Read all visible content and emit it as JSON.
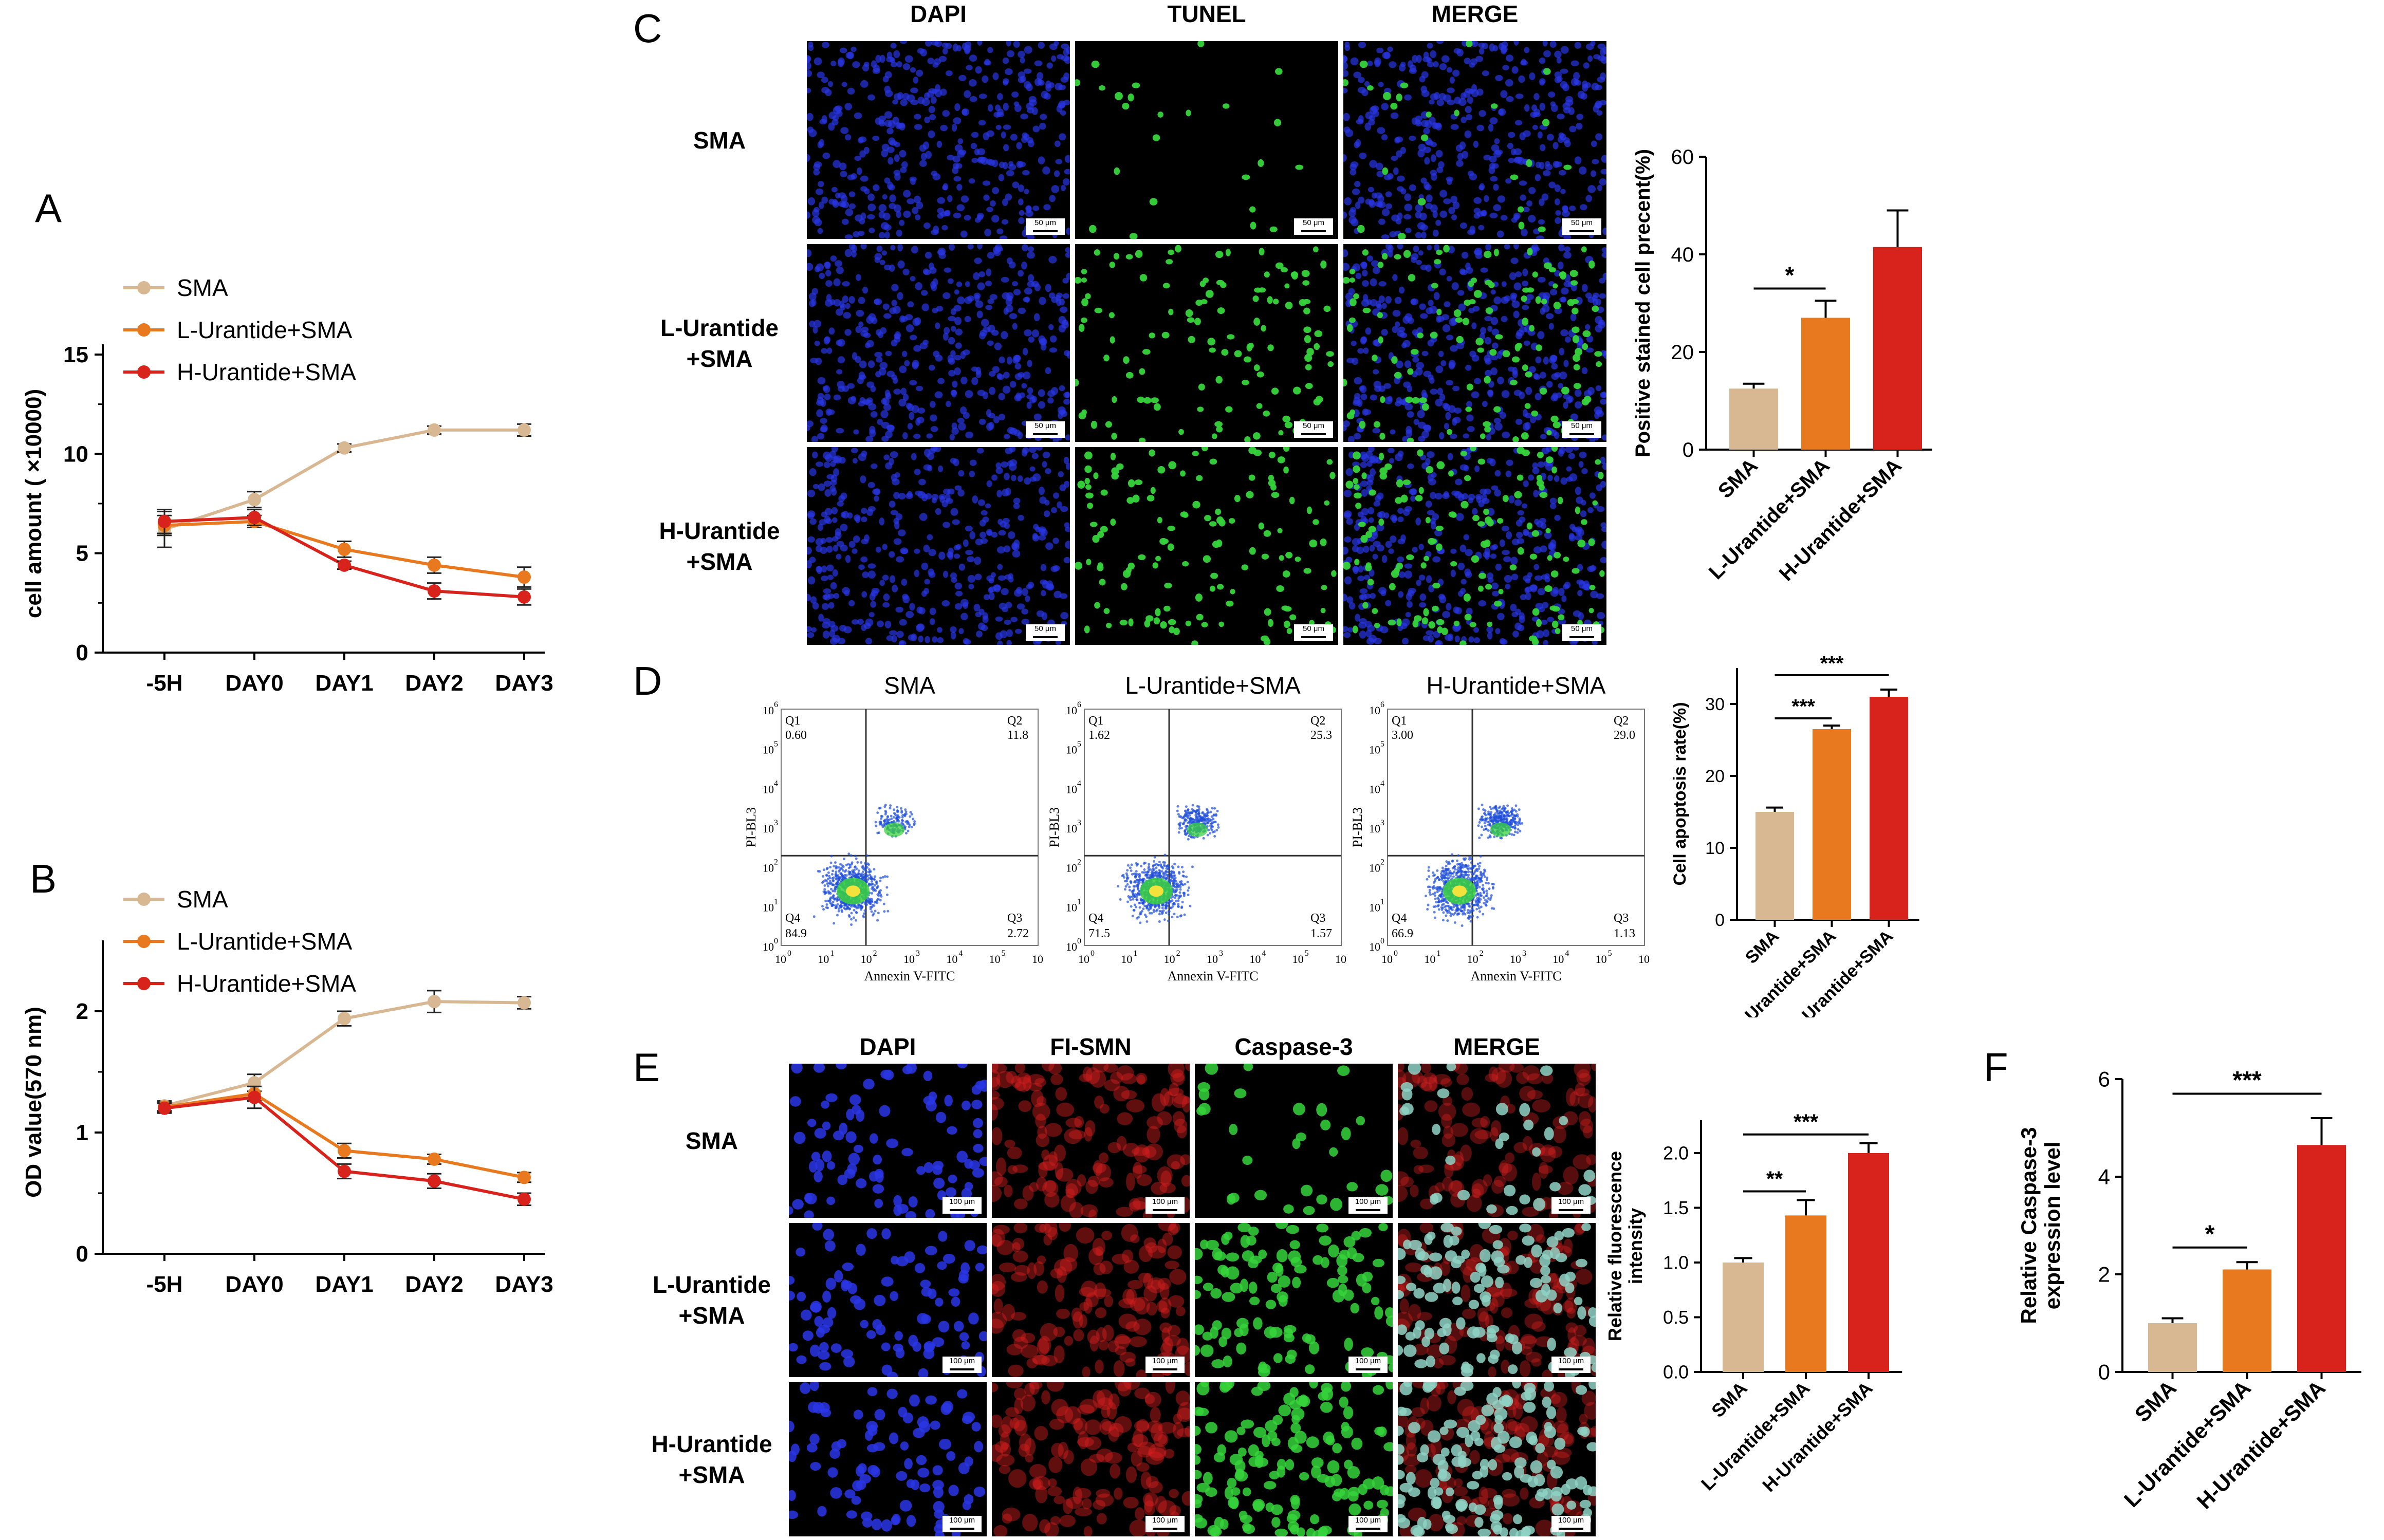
{
  "panels": {
    "A": {
      "letter": "A",
      "ylabel": "cell amount ( ×10000)",
      "categories": [
        "-5H",
        "DAY0",
        "DAY1",
        "DAY2",
        "DAY3"
      ],
      "yticks": [
        "0",
        "5",
        "10",
        "15"
      ],
      "legend": [
        "SMA",
        "L-Urantide+SMA",
        "H-Urantide+SMA"
      ]
    },
    "B": {
      "letter": "B",
      "ylabel": "OD value(570 nm)",
      "categories": [
        "-5H",
        "DAY0",
        "DAY1",
        "DAY2",
        "DAY3"
      ],
      "yticks": [
        "0",
        "1",
        "2"
      ],
      "legend": [
        "SMA",
        "L-Urantide+SMA",
        "H-Urantide+SMA"
      ]
    },
    "C": {
      "letter": "C",
      "columns": [
        "DAPI",
        "TUNEL",
        "MERGE"
      ],
      "rows": [
        "SMA",
        "L-Urantide\n+SMA",
        "H-Urantide\n+SMA"
      ],
      "scale": "50 μm",
      "bar": {
        "ylabel": "Positive stained cell precent(%)",
        "yticks": [
          "0",
          "20",
          "40",
          "60"
        ],
        "categories": [
          "SMA",
          "L-Urantide+SMA",
          "H-Urantide+SMA"
        ],
        "sig": [
          "*"
        ]
      }
    },
    "D": {
      "letter": "D",
      "plots": [
        {
          "title": "SMA",
          "q1": "0.60",
          "q2": "11.8",
          "q3": "2.72",
          "q4": "84.9"
        },
        {
          "title": "L-Urantide+SMA",
          "q1": "1.62",
          "q2": "25.3",
          "q3": "1.57",
          "q4": "71.5"
        },
        {
          "title": "H-Urantide+SMA",
          "q1": "3.00",
          "q2": "29.0",
          "q3": "1.13",
          "q4": "66.9"
        }
      ],
      "quad_labels": [
        "Q1",
        "Q2",
        "Q3",
        "Q4"
      ],
      "xaxis": "Annexin V-FITC",
      "yaxis": "PI-BL3",
      "log_ticks": [
        "10",
        "10",
        "10",
        "10",
        "10",
        "10",
        "10"
      ],
      "log_exps": [
        "0",
        "1",
        "2",
        "3",
        "4",
        "5",
        "6"
      ],
      "bar": {
        "ylabel": "Cell apoptosis rate(%)",
        "yticks": [
          "0",
          "10",
          "20",
          "30"
        ],
        "categories": [
          "SMA",
          "L-Urantide+SMA",
          "H-Urantide+SMA"
        ],
        "sig": [
          "***",
          "***"
        ]
      }
    },
    "E": {
      "letter": "E",
      "columns": [
        "DAPI",
        "FI-SMN",
        "Caspase-3",
        "MERGE"
      ],
      "rows": [
        "SMA",
        "L-Urantide\n+SMA",
        "H-Urantide\n+SMA"
      ],
      "scale": "100 μm",
      "bar": {
        "ylabel": "Relative fluorescence\nintensity",
        "yticks": [
          "0.0",
          "0.5",
          "1.0",
          "1.5",
          "2.0"
        ],
        "categories": [
          "SMA",
          "L-Urantide+SMA",
          "H-Urantide+SMA"
        ],
        "sig": [
          "**",
          "***"
        ]
      }
    },
    "F": {
      "letter": "F",
      "bar": {
        "ylabel": "Relative Caspase-3\nexpression level",
        "yticks": [
          "0",
          "2",
          "4",
          "6"
        ],
        "categories": [
          "SMA",
          "L-Urantide+SMA",
          "H-Urantide+SMA"
        ],
        "sig": [
          "*",
          "***"
        ]
      }
    }
  },
  "colors": {
    "sma": "#d8b893",
    "low": "#e8791e",
    "high": "#d7231b",
    "dapi": "#2a36e6",
    "tunel": "#36d43c",
    "smn": "#d62020",
    "flow": "#1f4fd8"
  },
  "chart_data": [
    {
      "type": "line",
      "panel": "A",
      "x": [
        "-5H",
        "DAY0",
        "DAY1",
        "DAY2",
        "DAY3"
      ],
      "ylabel": "cell amount ( ×10000)",
      "ylim": [
        0,
        15
      ],
      "series": [
        {
          "name": "SMA",
          "values": [
            6.2,
            7.7,
            10.3,
            11.2,
            11.2
          ],
          "err": [
            0.9,
            0.4,
            0.2,
            0.2,
            0.3
          ]
        },
        {
          "name": "L-Urantide+SMA",
          "values": [
            6.4,
            6.6,
            5.2,
            4.4,
            3.8
          ],
          "err": [
            0.5,
            0.3,
            0.4,
            0.4,
            0.5
          ]
        },
        {
          "name": "H-Urantide+SMA",
          "values": [
            6.6,
            6.8,
            4.4,
            3.1,
            2.8
          ],
          "err": [
            0.6,
            0.4,
            0.2,
            0.4,
            0.4
          ]
        }
      ]
    },
    {
      "type": "line",
      "panel": "B",
      "x": [
        "-5H",
        "DAY0",
        "DAY1",
        "DAY2",
        "DAY3"
      ],
      "ylabel": "OD value(570 nm)",
      "ylim": [
        0,
        2.5
      ],
      "series": [
        {
          "name": "SMA",
          "values": [
            1.22,
            1.41,
            1.94,
            2.08,
            2.07
          ],
          "err": [
            0.04,
            0.07,
            0.06,
            0.09,
            0.05
          ]
        },
        {
          "name": "L-Urantide+SMA",
          "values": [
            1.21,
            1.32,
            0.85,
            0.78,
            0.63
          ],
          "err": [
            0.04,
            0.06,
            0.06,
            0.04,
            0.04
          ]
        },
        {
          "name": "H-Urantide+SMA",
          "values": [
            1.2,
            1.29,
            0.68,
            0.6,
            0.45
          ],
          "err": [
            0.04,
            0.09,
            0.06,
            0.06,
            0.05
          ]
        }
      ]
    },
    {
      "type": "bar",
      "panel": "C",
      "categories": [
        "SMA",
        "L-Urantide+SMA",
        "H-Urantide+SMA"
      ],
      "ylabel": "Positive stained cell precent(%)",
      "ylim": [
        0,
        60
      ],
      "values": [
        12.5,
        27,
        41.5
      ],
      "err": [
        1,
        3.5,
        7.5
      ]
    },
    {
      "type": "bar",
      "panel": "D",
      "categories": [
        "SMA",
        "L-Urantide+SMA",
        "H-Urantide+SMA"
      ],
      "ylabel": "Cell apoptosis rate(%)",
      "ylim": [
        0,
        35
      ],
      "values": [
        15,
        26.5,
        31
      ],
      "err": [
        0.6,
        0.5,
        1
      ]
    },
    {
      "type": "bar",
      "panel": "E",
      "categories": [
        "SMA",
        "L-Urantide+SMA",
        "H-Urantide+SMA"
      ],
      "ylabel": "Relative fluorescence intensity",
      "ylim": [
        0,
        2.3
      ],
      "values": [
        1.0,
        1.43,
        2.0
      ],
      "err": [
        0.04,
        0.14,
        0.09
      ]
    },
    {
      "type": "bar",
      "panel": "F",
      "categories": [
        "SMA",
        "L-Urantide+SMA",
        "H-Urantide+SMA"
      ],
      "ylabel": "Relative Caspase-3 expression level",
      "ylim": [
        0,
        6
      ],
      "values": [
        1.0,
        2.1,
        4.65
      ],
      "err": [
        0.1,
        0.15,
        0.55
      ]
    }
  ]
}
